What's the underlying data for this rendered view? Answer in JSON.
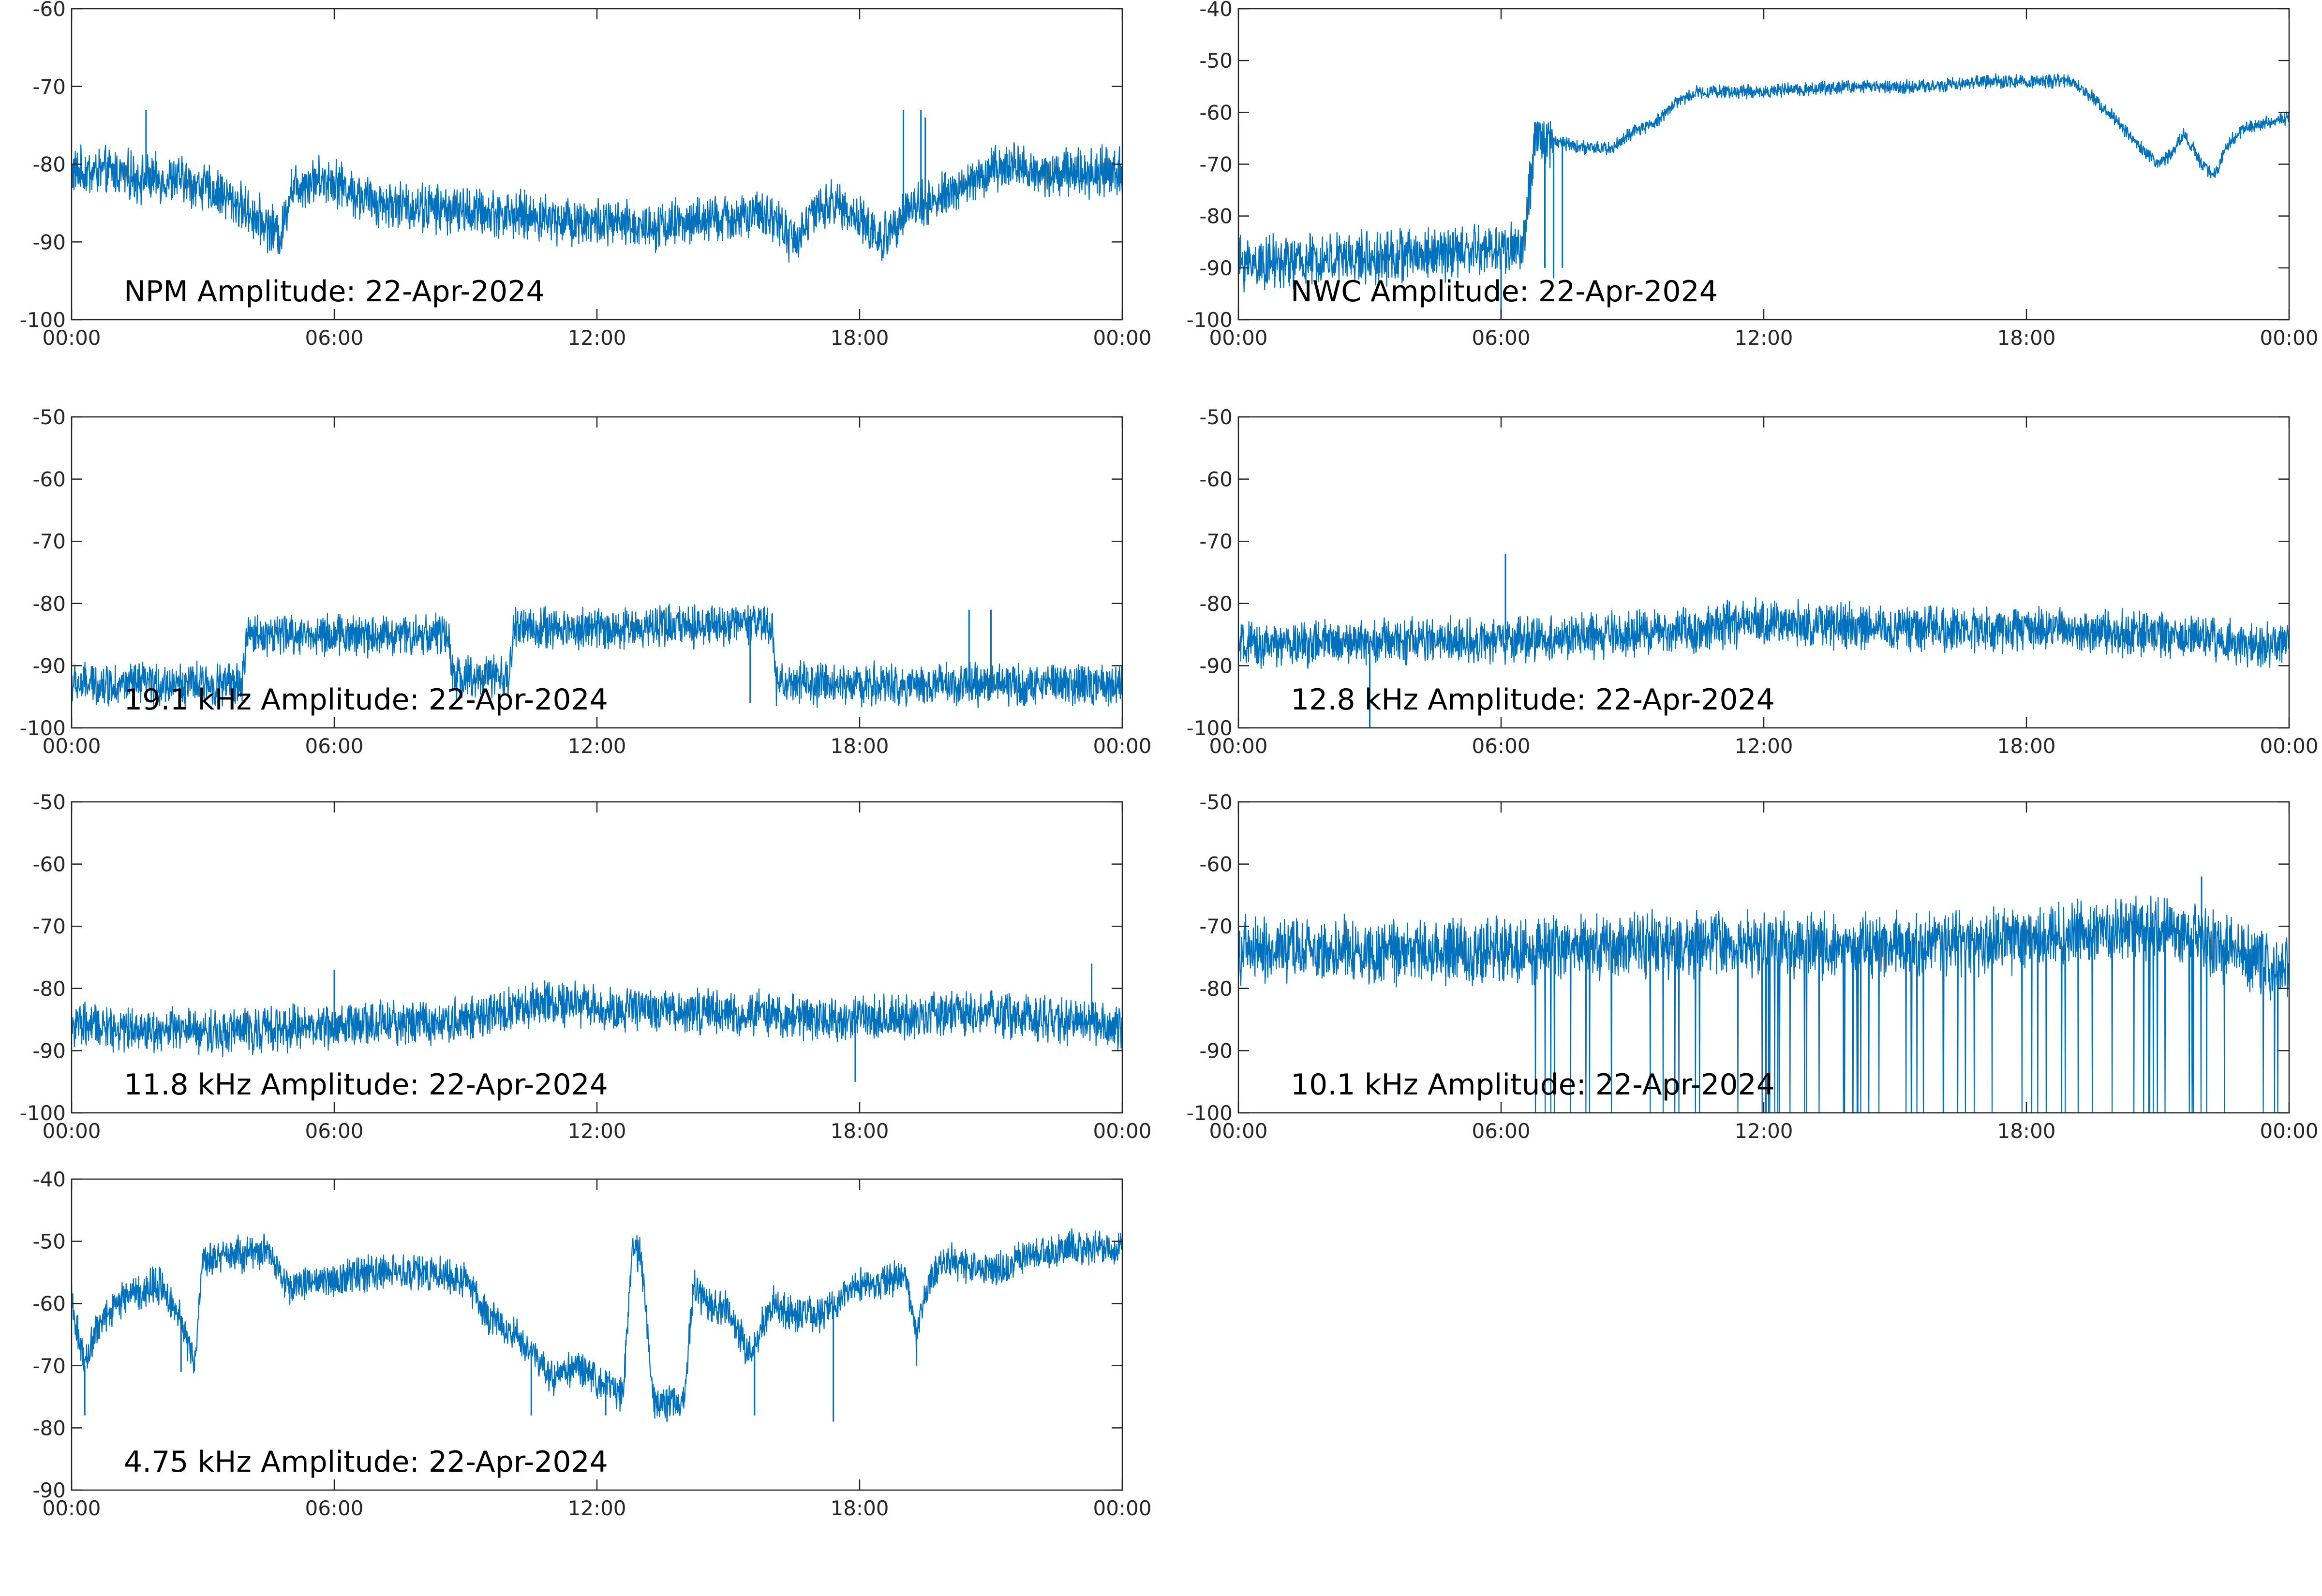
{
  "colors": {
    "series": "#0072BD",
    "axes": "#262626",
    "text": "#000000"
  },
  "chart_data": [
    {
      "type": "line",
      "title": "NPM Amplitude: 22-Apr-2024",
      "ylim": [
        -100,
        -60
      ],
      "yticks": [
        "-60",
        "-70",
        "-80",
        "-90",
        "-100"
      ],
      "xticks": [
        "00:00",
        "06:00",
        "12:00",
        "18:00",
        "00:00"
      ],
      "xlim_hours": [
        0,
        24
      ],
      "grid": false,
      "series": [
        {
          "hours": [
            0,
            1,
            1.7,
            2.5,
            3.5,
            4.5,
            4.8,
            5,
            5.5,
            6,
            6.5,
            7,
            8,
            9,
            10,
            11,
            12,
            13,
            14,
            15,
            16,
            16.5,
            17,
            17.5,
            18,
            18.5,
            19,
            20,
            21,
            21.5,
            22,
            23,
            24
          ],
          "values": [
            -81,
            -81,
            -82,
            -82,
            -84,
            -88,
            -89,
            -83,
            -82,
            -82,
            -84,
            -85,
            -85.5,
            -86,
            -86.5,
            -87,
            -87.5,
            -88,
            -87.5,
            -87,
            -86.5,
            -90,
            -86,
            -85,
            -87,
            -90,
            -86,
            -84,
            -81,
            -80,
            -81,
            -81,
            -81
          ],
          "noise": 2.4,
          "spikes": [
            [
              1.7,
              -73
            ],
            [
              19.0,
              -73
            ],
            [
              19.4,
              -73
            ],
            [
              19.5,
              -74
            ]
          ]
        }
      ]
    },
    {
      "type": "line",
      "title": "NWC Amplitude: 22-Apr-2024",
      "ylim": [
        -100,
        -40
      ],
      "yticks": [
        "-40",
        "-50",
        "-60",
        "-70",
        "-80",
        "-90",
        "-100"
      ],
      "xticks": [
        "00:00",
        "06:00",
        "12:00",
        "18:00",
        "00:00"
      ],
      "xlim_hours": [
        0,
        24
      ],
      "grid": false,
      "series": [
        {
          "hours": [
            0,
            1,
            3,
            5,
            6.5,
            6.8,
            7,
            7.5,
            8,
            8.5,
            9,
            9.5,
            10,
            10.5,
            11,
            12,
            13,
            14,
            15,
            16,
            17,
            18,
            19,
            19.5,
            20,
            20.5,
            21,
            21.3,
            21.6,
            22,
            22.3,
            22.6,
            23,
            24
          ],
          "values": [
            -89,
            -89,
            -88,
            -87,
            -86,
            -65,
            -65,
            -66,
            -67,
            -67,
            -64,
            -62,
            -58,
            -56,
            -56,
            -56,
            -55.5,
            -55,
            -55,
            -55,
            -54,
            -54,
            -54,
            -57,
            -61,
            -66,
            -70,
            -68,
            -64,
            -70,
            -72,
            -66,
            -63,
            -61
          ],
          "noise": 1.0,
          "noise_until_hour": 7.2,
          "noise_early": 4.0,
          "spikes": [
            [
              0,
              -62
            ],
            [
              6.0,
              -100
            ],
            [
              7.0,
              -90
            ],
            [
              7.2,
              -92
            ],
            [
              7.4,
              -90
            ]
          ]
        }
      ]
    },
    {
      "type": "line",
      "title": "19.1 kHz Amplitude: 22-Apr-2024",
      "ylim": [
        -100,
        -50
      ],
      "yticks": [
        "-50",
        "-60",
        "-70",
        "-80",
        "-90",
        "-100"
      ],
      "xticks": [
        "00:00",
        "06:00",
        "12:00",
        "18:00",
        "00:00"
      ],
      "xlim_hours": [
        0,
        24
      ],
      "grid": false,
      "series": [
        {
          "hours": [
            0,
            3.9,
            4.0,
            8.6,
            8.7,
            10.0,
            10.1,
            13.0,
            13.1,
            16.0,
            16.1,
            24
          ],
          "values": [
            -93,
            -93,
            -85,
            -85,
            -92,
            -92,
            -84,
            -84,
            -83.5,
            -83.5,
            -93,
            -93
          ],
          "noise": 2.6,
          "spikes": [
            [
              15.5,
              -96
            ],
            [
              20.5,
              -81
            ],
            [
              21.0,
              -81
            ]
          ]
        }
      ]
    },
    {
      "type": "line",
      "title": "12.8 kHz Amplitude: 22-Apr-2024",
      "ylim": [
        -100,
        -50
      ],
      "yticks": [
        "-50",
        "-60",
        "-70",
        "-80",
        "-90",
        "-100"
      ],
      "xticks": [
        "00:00",
        "06:00",
        "12:00",
        "18:00",
        "00:00"
      ],
      "xlim_hours": [
        0,
        24
      ],
      "grid": false,
      "series": [
        {
          "hours": [
            0,
            3,
            6,
            9,
            12,
            15,
            18,
            21,
            24
          ],
          "values": [
            -87,
            -86,
            -86,
            -85,
            -83,
            -84,
            -84,
            -85,
            -87
          ],
          "noise": 2.8,
          "spikes": [
            [
              6.1,
              -72
            ],
            [
              3.0,
              -100
            ]
          ]
        }
      ]
    },
    {
      "type": "line",
      "title": "11.8 kHz Amplitude: 22-Apr-2024",
      "ylim": [
        -100,
        -50
      ],
      "yticks": [
        "-50",
        "-60",
        "-70",
        "-80",
        "-90",
        "-100"
      ],
      "xticks": [
        "00:00",
        "06:00",
        "12:00",
        "18:00",
        "00:00"
      ],
      "xlim_hours": [
        0,
        24
      ],
      "grid": false,
      "series": [
        {
          "hours": [
            0,
            3,
            6,
            9,
            11,
            12,
            15,
            18,
            21,
            24
          ],
          "values": [
            -86,
            -87,
            -86,
            -85,
            -82,
            -83,
            -84,
            -85,
            -84,
            -86
          ],
          "noise": 2.8,
          "spikes": [
            [
              6.0,
              -77
            ],
            [
              23.3,
              -76
            ],
            [
              17.9,
              -95
            ]
          ]
        }
      ]
    },
    {
      "type": "line",
      "title": "10.1 kHz Amplitude: 22-Apr-2024",
      "ylim": [
        -100,
        -50
      ],
      "yticks": [
        "-50",
        "-60",
        "-70",
        "-80",
        "-90",
        "-100"
      ],
      "xticks": [
        "00:00",
        "06:00",
        "12:00",
        "18:00",
        "00:00"
      ],
      "xlim_hours": [
        0,
        24
      ],
      "grid": false,
      "series": [
        {
          "hours": [
            0,
            6,
            9,
            12,
            15,
            18,
            21,
            24
          ],
          "values": [
            -74,
            -74,
            -73,
            -73,
            -73,
            -72,
            -70,
            -77
          ],
          "noise": 4.0,
          "dropouts_after_hour": 6.2,
          "dropout_value": -100,
          "spikes": [
            [
              22.0,
              -62
            ]
          ]
        }
      ]
    },
    {
      "type": "line",
      "title": "4.75 kHz Amplitude: 22-Apr-2024",
      "ylim": [
        -90,
        -40
      ],
      "yticks": [
        "-40",
        "-50",
        "-60",
        "-70",
        "-80",
        "-90"
      ],
      "xticks": [
        "00:00",
        "06:00",
        "12:00",
        "18:00",
        "00:00"
      ],
      "xlim_hours": [
        0,
        24
      ],
      "grid": false,
      "series": [
        {
          "hours": [
            0,
            0.3,
            0.5,
            1,
            1.5,
            2,
            2.5,
            2.8,
            3,
            4,
            4.5,
            5,
            5.5,
            6,
            7,
            8,
            9,
            9.5,
            10,
            10.5,
            11,
            11.5,
            12,
            12.6,
            12.8,
            13.0,
            13.3,
            14,
            14.2,
            14.5,
            15,
            15.5,
            16,
            16.5,
            17,
            17.5,
            18,
            18.5,
            19,
            19.3,
            19.6,
            20,
            21,
            22,
            23,
            24
          ],
          "values": [
            -60,
            -70,
            -65,
            -60,
            -58,
            -57,
            -62,
            -70,
            -53,
            -52,
            -52,
            -58,
            -56,
            -56,
            -55,
            -55,
            -56,
            -62,
            -64,
            -68,
            -72,
            -70,
            -72,
            -75,
            -52,
            -52,
            -76,
            -76,
            -57,
            -60,
            -61,
            -68,
            -60,
            -62,
            -62,
            -60,
            -57,
            -57,
            -55,
            -65,
            -56,
            -53,
            -55,
            -52,
            -51,
            -51
          ],
          "noise": 2.2,
          "spikes": [
            [
              0.3,
              -78
            ],
            [
              2.5,
              -71
            ],
            [
              10.5,
              -78
            ],
            [
              12.2,
              -78
            ],
            [
              13.6,
              -79
            ],
            [
              15.6,
              -78
            ],
            [
              17.4,
              -79
            ],
            [
              19.3,
              -70
            ]
          ]
        }
      ]
    }
  ]
}
